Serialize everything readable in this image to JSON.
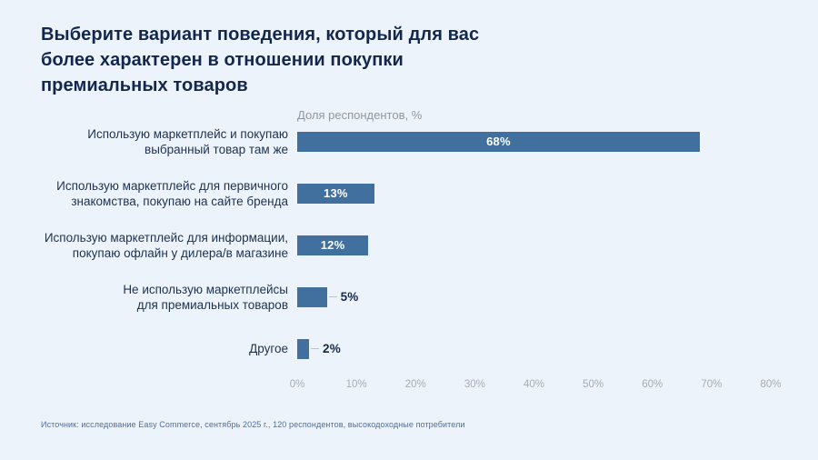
{
  "title": "Выберите вариант поведения, который для вас\nболее характерен в отношении покупки\nпремиальных товаров",
  "axis_caption": "Доля респондентов, %",
  "source": "Источник: исследование Easy Commerce, сентябрь 2025 г., 120 респондентов, высокодоходные потребители",
  "colors": {
    "background": "#edf3fa",
    "bar": "#42709e",
    "title": "#13274d",
    "label": "#1d3150",
    "value_inside": "#ffffff",
    "value_outside": "#16294a",
    "axis_caption": "#8d97a7",
    "tick": "#a3adbb",
    "source": "#4d6e9e",
    "leader": "#b6c2cf"
  },
  "chart_data": {
    "type": "bar",
    "orientation": "horizontal",
    "title": "Выберите вариант поведения, который для вас более характерен в отношении покупки премиальных товаров",
    "xlabel": "Доля респондентов, %",
    "categories": [
      "Использую маркетплейс и покупаю\nвыбранный товар там же",
      "Использую маркетплейс для первичного\nзнакомства, покупаю на сайте бренда",
      "Использую маркетплейс для информации,\nпокупаю офлайн у дилера/в магазине",
      "Не использую маркетплейсы\nдля премиальных товаров",
      "Другое"
    ],
    "values": [
      68,
      13,
      12,
      5,
      2
    ],
    "value_labels": [
      "68%",
      "13%",
      "12%",
      "5%",
      "2%"
    ],
    "xlim": [
      0,
      80
    ],
    "xticks": [
      "0%",
      "10%",
      "20%",
      "30%",
      "40%",
      "50%",
      "60%",
      "70%",
      "80%"
    ],
    "grid": false,
    "legend": false,
    "inside_label_min": 10
  }
}
